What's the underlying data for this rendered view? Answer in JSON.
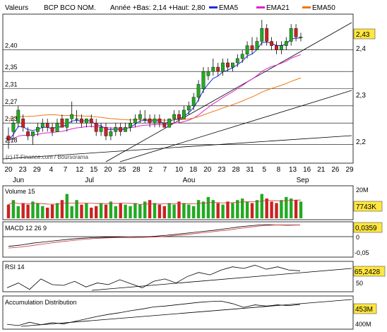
{
  "header": {
    "label": "Valeurs",
    "symbol": "BCP BCO NOM.",
    "stats": "Année +Bas: 2,14 +Haut: 2,80",
    "ema5_label": "EMA5",
    "ema21_label": "EMA21",
    "ema50_label": "EMA50"
  },
  "colors": {
    "up": "#22aa22",
    "down": "#cc2222",
    "ema5": "#1d2de0",
    "ema21": "#dd22cc",
    "ema50": "#ee7711",
    "badge": "#ffe640",
    "volume_avg": "#cc3333"
  },
  "price_panel": {
    "left_ticks": [
      "2,18",
      "2,23",
      "2,27",
      "2,31",
      "2,35",
      "2,40"
    ],
    "right_ticks": [
      "2,2",
      "2,3",
      "2,4"
    ],
    "last_badge": "2,43",
    "watermark": "(c) IT-Finance.com / Boursorama"
  },
  "x_axis": {
    "day_labels": [
      "20",
      "23",
      "29",
      "4",
      "7",
      "12",
      "15",
      "20",
      "25",
      "28",
      "2",
      "7",
      "10",
      "18",
      "20",
      "23",
      "28",
      "31",
      "5",
      "8",
      "13",
      "16",
      "21",
      "26",
      "29"
    ],
    "month_labels": [
      "Jun",
      "Jul",
      "Aou",
      "Sep"
    ]
  },
  "volume_panel": {
    "title": "Volume 15",
    "max_label": "20M",
    "badge": "7743K"
  },
  "macd_panel": {
    "title": "MACD 12 26 9",
    "badge": "0,0359",
    "tick_mid": "0",
    "tick_low": "-0,05"
  },
  "rsi_panel": {
    "title": "RSI 14",
    "badge": "65,2428",
    "tick_low": "50"
  },
  "ad_panel": {
    "title": "Accumulation Distribution",
    "badge": "453M",
    "tick_low": "400M"
  },
  "chart_data": [
    {
      "type": "candlestick",
      "title": "BCP BCO NOM.",
      "ylim": [
        2.14,
        2.48
      ],
      "last_value": 2.43,
      "candles": [
        {
          "o": 2.2,
          "h": 2.22,
          "l": 2.17,
          "c": 2.19
        },
        {
          "o": 2.21,
          "h": 2.24,
          "l": 2.19,
          "c": 2.23
        },
        {
          "o": 2.23,
          "h": 2.27,
          "l": 2.22,
          "c": 2.26
        },
        {
          "o": 2.24,
          "h": 2.25,
          "l": 2.21,
          "c": 2.22
        },
        {
          "o": 2.21,
          "h": 2.22,
          "l": 2.19,
          "c": 2.2
        },
        {
          "o": 2.2,
          "h": 2.21,
          "l": 2.18,
          "c": 2.21
        },
        {
          "o": 2.21,
          "h": 2.23,
          "l": 2.2,
          "c": 2.22
        },
        {
          "o": 2.22,
          "h": 2.24,
          "l": 2.21,
          "c": 2.23
        },
        {
          "o": 2.23,
          "h": 2.24,
          "l": 2.21,
          "c": 2.22
        },
        {
          "o": 2.22,
          "h": 2.23,
          "l": 2.2,
          "c": 2.21
        },
        {
          "o": 2.21,
          "h": 2.24,
          "l": 2.21,
          "c": 2.23
        },
        {
          "o": 2.24,
          "h": 2.25,
          "l": 2.22,
          "c": 2.22
        },
        {
          "o": 2.22,
          "h": 2.24,
          "l": 2.21,
          "c": 2.24
        },
        {
          "o": 2.24,
          "h": 2.28,
          "l": 2.23,
          "c": 2.25
        },
        {
          "o": 2.24,
          "h": 2.26,
          "l": 2.23,
          "c": 2.24
        },
        {
          "o": 2.24,
          "h": 2.25,
          "l": 2.22,
          "c": 2.23
        },
        {
          "o": 2.23,
          "h": 2.24,
          "l": 2.22,
          "c": 2.24
        },
        {
          "o": 2.24,
          "h": 2.25,
          "l": 2.22,
          "c": 2.23
        },
        {
          "o": 2.23,
          "h": 2.24,
          "l": 2.2,
          "c": 2.21
        },
        {
          "o": 2.21,
          "h": 2.23,
          "l": 2.2,
          "c": 2.22
        },
        {
          "o": 2.22,
          "h": 2.23,
          "l": 2.19,
          "c": 2.2
        },
        {
          "o": 2.2,
          "h": 2.22,
          "l": 2.19,
          "c": 2.21
        },
        {
          "o": 2.21,
          "h": 2.23,
          "l": 2.2,
          "c": 2.22
        },
        {
          "o": 2.22,
          "h": 2.23,
          "l": 2.2,
          "c": 2.21
        },
        {
          "o": 2.21,
          "h": 2.23,
          "l": 2.21,
          "c": 2.22
        },
        {
          "o": 2.22,
          "h": 2.24,
          "l": 2.21,
          "c": 2.23
        },
        {
          "o": 2.23,
          "h": 2.25,
          "l": 2.22,
          "c": 2.24
        },
        {
          "o": 2.24,
          "h": 2.26,
          "l": 2.23,
          "c": 2.25
        },
        {
          "o": 2.24,
          "h": 2.26,
          "l": 2.23,
          "c": 2.24
        },
        {
          "o": 2.24,
          "h": 2.25,
          "l": 2.22,
          "c": 2.23
        },
        {
          "o": 2.23,
          "h": 2.25,
          "l": 2.22,
          "c": 2.24
        },
        {
          "o": 2.24,
          "h": 2.25,
          "l": 2.22,
          "c": 2.23
        },
        {
          "o": 2.23,
          "h": 2.24,
          "l": 2.22,
          "c": 2.22
        },
        {
          "o": 2.22,
          "h": 2.24,
          "l": 2.22,
          "c": 2.24
        },
        {
          "o": 2.24,
          "h": 2.26,
          "l": 2.23,
          "c": 2.25
        },
        {
          "o": 2.25,
          "h": 2.26,
          "l": 2.23,
          "c": 2.24
        },
        {
          "o": 2.24,
          "h": 2.27,
          "l": 2.24,
          "c": 2.26
        },
        {
          "o": 2.26,
          "h": 2.28,
          "l": 2.25,
          "c": 2.27
        },
        {
          "o": 2.27,
          "h": 2.3,
          "l": 2.26,
          "c": 2.29
        },
        {
          "o": 2.29,
          "h": 2.33,
          "l": 2.28,
          "c": 2.32
        },
        {
          "o": 2.31,
          "h": 2.36,
          "l": 2.3,
          "c": 2.35
        },
        {
          "o": 2.34,
          "h": 2.36,
          "l": 2.33,
          "c": 2.35
        },
        {
          "o": 2.35,
          "h": 2.38,
          "l": 2.34,
          "c": 2.36
        },
        {
          "o": 2.36,
          "h": 2.37,
          "l": 2.34,
          "c": 2.35
        },
        {
          "o": 2.35,
          "h": 2.38,
          "l": 2.34,
          "c": 2.37
        },
        {
          "o": 2.37,
          "h": 2.38,
          "l": 2.35,
          "c": 2.36
        },
        {
          "o": 2.36,
          "h": 2.37,
          "l": 2.35,
          "c": 2.37
        },
        {
          "o": 2.37,
          "h": 2.39,
          "l": 2.36,
          "c": 2.38
        },
        {
          "o": 2.38,
          "h": 2.4,
          "l": 2.37,
          "c": 2.39
        },
        {
          "o": 2.39,
          "h": 2.42,
          "l": 2.38,
          "c": 2.41
        },
        {
          "o": 2.41,
          "h": 2.43,
          "l": 2.39,
          "c": 2.4
        },
        {
          "o": 2.4,
          "h": 2.43,
          "l": 2.4,
          "c": 2.42
        },
        {
          "o": 2.42,
          "h": 2.47,
          "l": 2.41,
          "c": 2.45
        },
        {
          "o": 2.45,
          "h": 2.46,
          "l": 2.41,
          "c": 2.42
        },
        {
          "o": 2.42,
          "h": 2.43,
          "l": 2.4,
          "c": 2.41
        },
        {
          "o": 2.41,
          "h": 2.42,
          "l": 2.39,
          "c": 2.4
        },
        {
          "o": 2.4,
          "h": 2.42,
          "l": 2.39,
          "c": 2.41
        },
        {
          "o": 2.41,
          "h": 2.43,
          "l": 2.4,
          "c": 2.42
        },
        {
          "o": 2.42,
          "h": 2.46,
          "l": 2.41,
          "c": 2.45
        },
        {
          "o": 2.45,
          "h": 2.46,
          "l": 2.42,
          "c": 2.43
        },
        {
          "o": 2.43,
          "h": 2.44,
          "l": 2.42,
          "c": 2.43
        }
      ]
    },
    {
      "type": "bar",
      "title": "Volume 15",
      "last_value": "7743K",
      "values": [
        9,
        12,
        8,
        10,
        9,
        11,
        10,
        8,
        7,
        9,
        10,
        12,
        16,
        8,
        12,
        9,
        10,
        7,
        8,
        10,
        9,
        11,
        8,
        10,
        9,
        8,
        10,
        9,
        11,
        12,
        10,
        9,
        8,
        10,
        9,
        11,
        10,
        9,
        8,
        12,
        11,
        14,
        12,
        10,
        9,
        11,
        10,
        12,
        13,
        11,
        10,
        12,
        16,
        13,
        11,
        10,
        12,
        14,
        13,
        12,
        11
      ]
    },
    {
      "type": "line",
      "title": "MACD 12 26 9",
      "last_value": 0.0359,
      "ticks": [
        0,
        -0.05
      ],
      "series": [
        {
          "values": [
            -0.03,
            -0.026,
            -0.02,
            -0.016,
            -0.012,
            -0.008,
            -0.005,
            -0.003,
            -0.002,
            -0.002,
            -0.003,
            -0.002,
            0.001,
            0.004,
            0.008,
            0.012,
            0.016,
            0.02,
            0.025,
            0.03,
            0.034,
            0.037,
            0.036,
            0.035,
            0.0359
          ]
        },
        {
          "values": [
            -0.035,
            -0.032,
            -0.027,
            -0.022,
            -0.017,
            -0.013,
            -0.009,
            -0.006,
            -0.004,
            -0.003,
            -0.003,
            -0.002,
            -0.001,
            0.001,
            0.004,
            0.008,
            0.012,
            0.016,
            0.02,
            0.025,
            0.03,
            0.034,
            0.036,
            0.036,
            0.036
          ]
        }
      ]
    },
    {
      "type": "line",
      "title": "RSI 14",
      "last_value": 65.2428,
      "ticks": [
        50
      ],
      "series": [
        {
          "values": [
            44,
            50,
            42,
            55,
            48,
            47,
            52,
            45,
            50,
            48,
            54,
            49,
            44,
            52,
            55,
            50,
            58,
            63,
            60,
            66,
            70,
            68,
            72,
            67,
            70,
            66,
            65
          ]
        }
      ]
    },
    {
      "type": "line",
      "title": "Accumulation Distribution",
      "last_value": "453M",
      "ticks": [
        "400M"
      ],
      "series": [
        {
          "values": [
            405,
            402,
            410,
            404,
            409,
            406,
            412,
            418,
            424,
            429,
            433,
            438,
            442,
            447,
            449,
            452,
            455,
            458,
            460,
            461,
            455,
            446,
            452,
            449,
            452,
            450,
            453
          ]
        }
      ]
    }
  ]
}
